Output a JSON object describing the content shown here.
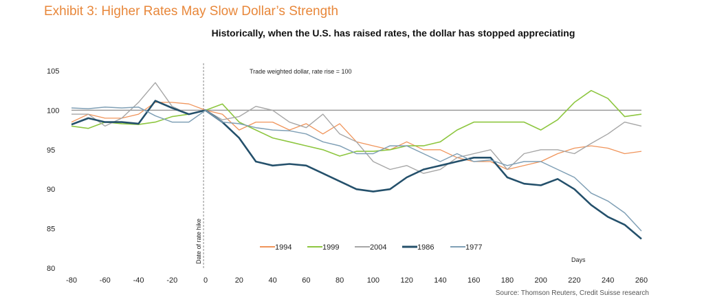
{
  "title": "Exhibit 3: Higher Rates May Slow Dollar’s Strength",
  "subtitle": "Historically, when the U.S. has raised rates, the dollar has stopped appreciating",
  "source": "Source: Thomson Reuters, Credit Suisse research",
  "chart_data": {
    "type": "line",
    "title": "Historically, when the U.S. has raised rates, the dollar has stopped appreciating",
    "xlabel": "Days",
    "ylabel": "",
    "annotation": "Trade weighted dollar, rate rise = 100",
    "vline_label": "Date of rate hike",
    "vline_x": 0,
    "reference_line_y": 100,
    "xlim": [
      -80,
      260
    ],
    "ylim": [
      80,
      105
    ],
    "xticks": [
      -80,
      -60,
      -40,
      -20,
      0,
      20,
      40,
      60,
      80,
      100,
      120,
      140,
      160,
      180,
      200,
      220,
      240,
      260
    ],
    "yticks": [
      80,
      85,
      90,
      95,
      100,
      105
    ],
    "legend_position": "bottom-center",
    "grid": false,
    "x": [
      -80,
      -70,
      -60,
      -50,
      -40,
      -30,
      -20,
      -10,
      0,
      10,
      20,
      30,
      40,
      50,
      60,
      70,
      80,
      90,
      100,
      110,
      120,
      130,
      140,
      150,
      160,
      170,
      180,
      190,
      200,
      210,
      220,
      230,
      240,
      250,
      260
    ],
    "series": [
      {
        "name": "1994",
        "color": "#f0945a",
        "width": 1.3,
        "values": [
          98.5,
          99.5,
          99,
          99,
          99.5,
          101,
          101,
          100.8,
          100,
          99.5,
          97.5,
          98.5,
          98.5,
          97.5,
          98.3,
          97,
          98.3,
          96,
          95.5,
          95,
          96,
          95,
          95,
          94,
          93.5,
          93.5,
          92.5,
          93,
          93.5,
          94.5,
          95.2,
          95.5,
          95.2,
          94.5,
          94.8
        ]
      },
      {
        "name": "1999",
        "color": "#8dc63f",
        "width": 1.6,
        "values": [
          98,
          97.7,
          98.5,
          98.3,
          98.2,
          98.5,
          99.2,
          99.5,
          100,
          100.8,
          98.5,
          97.5,
          96.5,
          96,
          95.5,
          95,
          94.2,
          94.8,
          94.8,
          95,
          95.5,
          95.5,
          96,
          97.5,
          98.5,
          98.5,
          98.5,
          98.5,
          97.5,
          98.8,
          101,
          102.5,
          101.5,
          99.2,
          99.5
        ]
      },
      {
        "name": "2004",
        "color": "#a6a6a6",
        "width": 1.4,
        "values": [
          99.5,
          99.5,
          98,
          99,
          101,
          103.5,
          100.5,
          99.5,
          100,
          98.8,
          99.2,
          100.5,
          100,
          98.5,
          97.8,
          99.5,
          97,
          96,
          93.5,
          92.5,
          93,
          92,
          92.5,
          94,
          94.5,
          95,
          92.5,
          94.5,
          95,
          95,
          94.5,
          95.8,
          97,
          98.5,
          98
        ]
      },
      {
        "name": "1986",
        "color": "#24506b",
        "width": 2.6,
        "values": [
          98.2,
          99,
          98.5,
          98.5,
          98.3,
          101.2,
          100.3,
          99.5,
          100,
          98.5,
          96.5,
          93.5,
          93,
          93.2,
          93,
          92,
          91,
          90,
          89.7,
          90,
          91.5,
          92.5,
          93,
          93.5,
          94,
          94,
          91.5,
          90.7,
          90.5,
          91.3,
          90,
          88,
          86.5,
          85.5,
          83.7
        ]
      },
      {
        "name": "1977",
        "color": "#7f9fb5",
        "width": 1.5,
        "values": [
          100.3,
          100.2,
          100.4,
          100.3,
          100.4,
          99.3,
          98.5,
          98.5,
          100,
          98.5,
          98.3,
          97.8,
          97.5,
          97.4,
          97,
          96,
          95.5,
          94.5,
          94.5,
          95.5,
          95.5,
          94.5,
          93.5,
          94.5,
          93.5,
          93.7,
          93,
          93.5,
          93.5,
          92.5,
          91.5,
          89.5,
          88.5,
          87,
          84.7
        ]
      }
    ]
  }
}
